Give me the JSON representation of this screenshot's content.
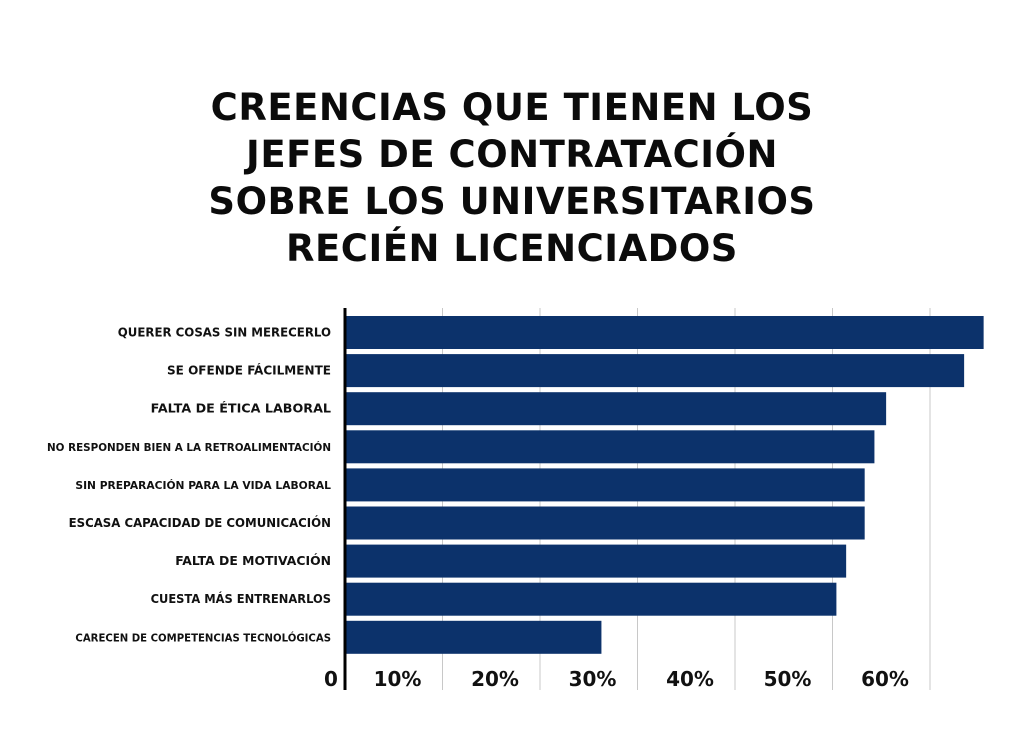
{
  "chart_data": {
    "type": "bar",
    "orientation": "horizontal",
    "title_lines": [
      "CREENCIAS QUE TIENEN LOS",
      "JEFES DE CONTRATACIÓN",
      "SOBRE LOS UNIVERSITARIOS",
      "RECIÉN LICENCIADOS"
    ],
    "categories": [
      "QUERER COSAS SIN MERECERLO",
      "SE OFENDE FÁCILMENTE",
      "FALTA DE ÉTICA LABORAL",
      "NO RESPONDEN BIEN A LA RETROALIMENTACIÓN",
      "SIN PREPARACIÓN PARA LA VIDA LABORAL",
      "ESCASA CAPACIDAD DE COMUNICACIÓN",
      "FALTA DE MOTIVACIÓN",
      "CUESTA MÁS ENTRENARLOS",
      "CARECEN DE COMPETENCIAS TECNOLÓGICAS"
    ],
    "values": [
      65.5,
      63.5,
      55.5,
      54.3,
      53.3,
      53.3,
      51.4,
      50.4,
      26.3
    ],
    "xlim": [
      0,
      66
    ],
    "xticks": [
      {
        "value": 0,
        "label": "0"
      },
      {
        "value": 10,
        "label": "10%"
      },
      {
        "value": 20,
        "label": "20%"
      },
      {
        "value": 30,
        "label": "30%"
      },
      {
        "value": 40,
        "label": "40%"
      },
      {
        "value": 50,
        "label": "50%"
      },
      {
        "value": 60,
        "label": "60%"
      }
    ],
    "grid": true,
    "bar_color": "#0c326b",
    "grid_color": "#c8c8c8",
    "axis_color": "#000000"
  }
}
